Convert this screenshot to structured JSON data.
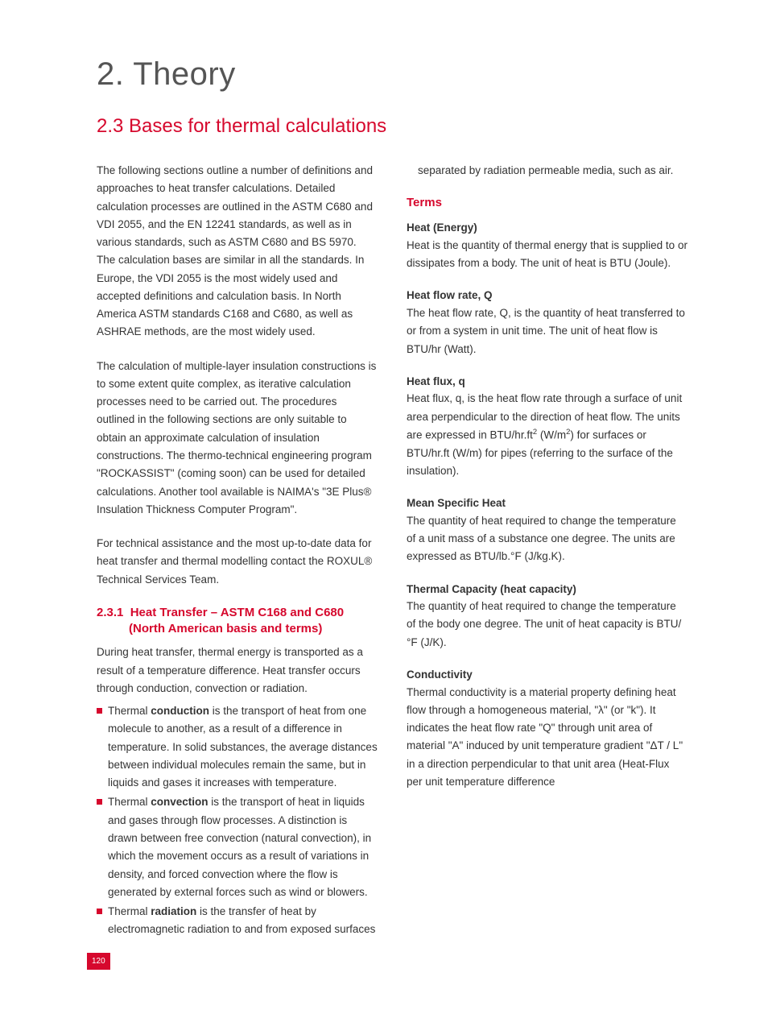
{
  "page_number": "120",
  "colors": {
    "accent": "#d6082d",
    "heading": "#555555",
    "body": "#333333",
    "background": "#ffffff"
  },
  "heading": "2. Theory",
  "subheading": "2.3 Bases for thermal calculations",
  "intro_p1": "The following sections outline a number of definitions and approaches to heat transfer calculations. Detailed calculation processes are outlined in the ASTM C680 and VDI 2055, and the EN 12241 standards, as well as in various standards, such as ASTM C680 and BS 5970. The calculation bases are similar in all the standards. In Europe, the VDI 2055 is the most widely used and accepted definitions and calculation basis. In North America ASTM standards C168 and C680, as well as ASHRAE methods, are the most widely used.",
  "intro_p2": "The calculation of multiple-layer insulation constructions is to some extent quite complex, as iterative calculation processes need to be carried out. The procedures outlined in the following sections are only suitable to obtain an approximate calculation of insulation constructions. The thermo-technical engineering program  \"ROCKASSIST\" (coming soon) can be used for detailed calculations. Another tool available is NAIMA's \"3E Plus® Insulation Thickness Computer Program\".",
  "intro_p3": "For technical assistance and the most up-to-date data for heat transfer and thermal modelling contact the ROXUL® Technical Services Team.",
  "section_231": {
    "heading_num": "2.3.1",
    "heading_rest": "Heat Transfer – ASTM C168 and C680 (North American basis and terms)",
    "intro": "During heat transfer, thermal energy is transported as a result of a temperature difference. Heat transfer occurs through conduction, convection or radiation.",
    "bullets": {
      "b1_pre": "Thermal ",
      "b1_strong": "conduction",
      "b1_post": " is the transport of heat from one molecule to another, as a result of a difference in temperature. In solid substances, the average distances between individual molecules remain the same, but in liquids and gases it increases with temperature.",
      "b2_pre": "Thermal ",
      "b2_strong": "convection",
      "b2_post": " is the transport of heat in liquids and gases through flow processes. A distinction is drawn between free convection (natural convection), in which the movement occurs as a result of variations in density, and forced convection where the flow is generated by external forces such as wind or blowers.",
      "b3_pre": "Thermal ",
      "b3_strong": "radiation",
      "b3_post": " is the transfer of heat by electromagnetic radiation to and from exposed surfaces separated by radiation permeable media, such as air."
    }
  },
  "terms_heading": "Terms",
  "terms": {
    "t1_title": "Heat (Energy)",
    "t1_body": "Heat is the quantity of thermal energy that is supplied to or dissipates from a body. The unit of heat is BTU (Joule).",
    "t2_title": "Heat flow rate, Q",
    "t2_body": "The heat flow rate, Q, is the quantity of heat transferred to or from a system in unit time. The unit of heat flow is BTU/hr (Watt).",
    "t3_title": "Heat flux, q",
    "t3_body_a": "Heat flux, q, is the heat flow rate through a surface of unit area perpendicular to the direction of heat flow. The units are expressed in BTU/hr.ft",
    "t3_body_b": " (W/m",
    "t3_body_c": ") for surfaces or BTU/hr.ft (W/m) for pipes (referring to the surface of the insulation).",
    "t4_title": "Mean Specific Heat",
    "t4_body": "The quantity of heat required to change the temperature of a unit mass of a substance one degree. The units are expressed as BTU/lb.°F (J/kg.K).",
    "t5_title": "Thermal Capacity (heat capacity)",
    "t5_body": "The quantity of heat required to change the temperature of the body one degree. The unit of heat capacity is BTU/°F  (J/K).",
    "t6_title": "Conductivity",
    "t6_body": "Thermal conductivity is a material property defining heat flow through a homogeneous material, \"λ\" (or \"k\"). It indicates the heat flow rate \"Q\" through unit area of material \"A\" induced by unit temperature gradient \"ΔT / L\" in a direction perpendicular to that unit area (Heat-Flux per unit temperature difference"
  }
}
